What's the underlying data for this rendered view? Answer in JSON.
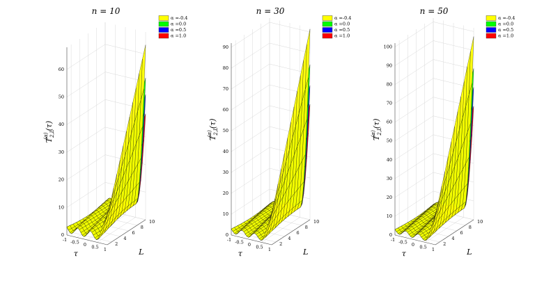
{
  "chart_data": [
    {
      "type": "surface",
      "title": "n = 10",
      "title_var": "n",
      "title_value": "10",
      "xlabel": "τ",
      "ylabel": "L",
      "zlabel_base": "T",
      "zlabel_sup": "(α)",
      "zlabel_sub": "2,L",
      "zlabel_arg": "(τ)",
      "x_ticks": [
        "-1",
        "-0.5",
        "0",
        "0.5",
        "1"
      ],
      "x_range": [
        -1,
        1
      ],
      "y_ticks": [
        "2",
        "4",
        "6",
        "8",
        "10"
      ],
      "y_range": [
        1,
        10
      ],
      "z_ticks": [
        "0",
        "10",
        "20",
        "30",
        "40",
        "50",
        "60"
      ],
      "zlim": [
        0,
        68
      ],
      "grid": true,
      "legend_position": "top-right",
      "series": [
        {
          "name": "α =-0.4",
          "color": "#ffff00",
          "peak": 63
        },
        {
          "name": "α =0.0",
          "color": "#00ff00",
          "peak": 51
        },
        {
          "name": "α =0.5",
          "color": "#0000ff",
          "peak": 45
        },
        {
          "name": "α =1.0",
          "color": "#ff0000",
          "peak": 38
        }
      ]
    },
    {
      "type": "surface",
      "title": "n = 30",
      "title_var": "n",
      "title_value": "30",
      "xlabel": "τ",
      "ylabel": "L",
      "zlabel_base": "T",
      "zlabel_sup": "(α)",
      "zlabel_sub": "2,L",
      "zlabel_arg": "(τ)",
      "x_ticks": [
        "-1",
        "-0.5",
        "0",
        "0.5",
        "1"
      ],
      "x_range": [
        -1,
        1
      ],
      "y_ticks": [
        "2",
        "4",
        "6",
        "8",
        "10"
      ],
      "y_range": [
        1,
        10
      ],
      "z_ticks": [
        "0",
        "10",
        "20",
        "30",
        "40",
        "50",
        "60",
        "70",
        "80",
        "90"
      ],
      "zlim": [
        0,
        92
      ],
      "grid": true,
      "legend_position": "top-right",
      "series": [
        {
          "name": "α =-0.4",
          "color": "#ffff00",
          "peak": 91
        },
        {
          "name": "α =0.0",
          "color": "#00ff00",
          "peak": 74
        },
        {
          "name": "α =0.5",
          "color": "#0000ff",
          "peak": 64
        },
        {
          "name": "α =1.0",
          "color": "#ff0000",
          "peak": 55
        }
      ]
    },
    {
      "type": "surface",
      "title": "n = 50",
      "title_var": "n",
      "title_value": "50",
      "xlabel": "τ",
      "ylabel": "L",
      "zlabel_base": "T",
      "zlabel_sup": "(α)",
      "zlabel_sub": "2,L",
      "zlabel_arg": "(τ)",
      "x_ticks": [
        "-1",
        "-0.5",
        "0",
        "0.5",
        "1"
      ],
      "x_range": [
        -1,
        1
      ],
      "y_ticks": [
        "2",
        "4",
        "6",
        "8",
        "10"
      ],
      "y_range": [
        1,
        10
      ],
      "z_ticks": [
        "0",
        "10",
        "20",
        "30",
        "40",
        "50",
        "60",
        "70",
        "80",
        "90",
        "100"
      ],
      "zlim": [
        0,
        102
      ],
      "grid": true,
      "legend_position": "top-right",
      "series": [
        {
          "name": "α =-0.4",
          "color": "#ffff00",
          "peak": 97
        },
        {
          "name": "α =0.0",
          "color": "#00ff00",
          "peak": 80
        },
        {
          "name": "α =0.5",
          "color": "#0000ff",
          "peak": 70
        },
        {
          "name": "α =1.0",
          "color": "#ff0000",
          "peak": 60
        }
      ]
    }
  ]
}
